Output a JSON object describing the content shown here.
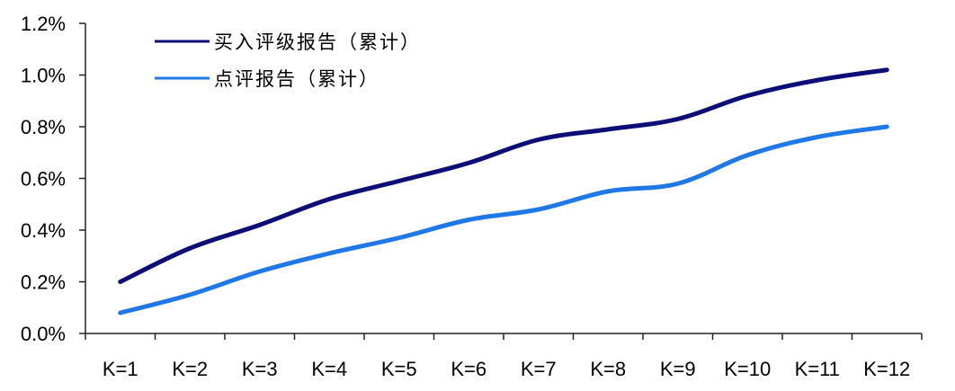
{
  "chart_data": {
    "type": "line",
    "title": "",
    "xlabel": "",
    "ylabel": "",
    "categories": [
      "K=1",
      "K=2",
      "K=3",
      "K=4",
      "K=5",
      "K=6",
      "K=7",
      "K=8",
      "K=9",
      "K=10",
      "K=11",
      "K=12"
    ],
    "ylim": [
      0,
      0.012
    ],
    "yticks": [
      0,
      0.002,
      0.004,
      0.006,
      0.008,
      0.01,
      0.012
    ],
    "ytick_labels": [
      "0.0%",
      "0.2%",
      "0.4%",
      "0.6%",
      "0.8%",
      "1.0%",
      "1.2%"
    ],
    "grid": false,
    "legend_position": "top-left",
    "series": [
      {
        "name": "买入评级报告（累计）",
        "color": "#0d0d78",
        "values": [
          0.002,
          0.0033,
          0.0042,
          0.0052,
          0.0059,
          0.0066,
          0.0075,
          0.0079,
          0.0083,
          0.0092,
          0.0098,
          0.0102
        ]
      },
      {
        "name": "点评报告（累计）",
        "color": "#1f78e8",
        "values": [
          0.0008,
          0.0015,
          0.0024,
          0.0031,
          0.0037,
          0.0044,
          0.0048,
          0.0055,
          0.0058,
          0.0069,
          0.0076,
          0.008
        ]
      }
    ]
  }
}
